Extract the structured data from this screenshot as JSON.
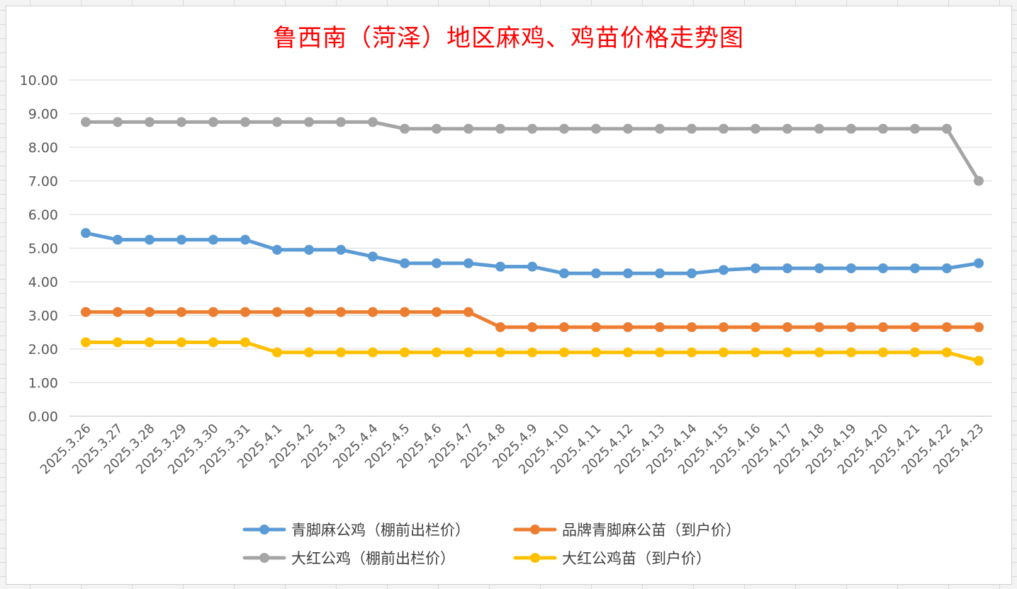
{
  "chart_data": {
    "type": "line",
    "title": "鲁西南（菏泽）地区麻鸡、鸡苗价格走势图",
    "xlabel": "",
    "ylabel": "",
    "ylim": [
      0,
      10
    ],
    "grid": true,
    "legend_position": "bottom",
    "y_ticks": [
      "0.00",
      "1.00",
      "2.00",
      "3.00",
      "4.00",
      "5.00",
      "6.00",
      "7.00",
      "8.00",
      "9.00",
      "10.00"
    ],
    "categories": [
      "2025.3.26",
      "2025.3.27",
      "2025.3.28",
      "2025.3.29",
      "2025.3.30",
      "2025.3.31",
      "2025.4.1",
      "2025.4.2",
      "2025.4.3",
      "2025.4.4",
      "2025.4.5",
      "2025.4.6",
      "2025.4.7",
      "2025.4.8",
      "2025.4.9",
      "2025.4.10",
      "2025.4.11",
      "2025.4.12",
      "2025.4.13",
      "2025.4.14",
      "2025.4.15",
      "2025.4.16",
      "2025.4.17",
      "2025.4.18",
      "2025.4.19",
      "2025.4.20",
      "2025.4.21",
      "2025.4.22",
      "2025.4.23"
    ],
    "series": [
      {
        "name": "青脚麻公鸡（棚前出栏价）",
        "color": "#5b9bd5",
        "values": [
          5.45,
          5.25,
          5.25,
          5.25,
          5.25,
          5.25,
          4.95,
          4.95,
          4.95,
          4.75,
          4.55,
          4.55,
          4.55,
          4.45,
          4.45,
          4.25,
          4.25,
          4.25,
          4.25,
          4.25,
          4.35,
          4.4,
          4.4,
          4.4,
          4.4,
          4.4,
          4.4,
          4.4,
          4.55
        ]
      },
      {
        "name": "品牌青脚麻公苗（到户价）",
        "color": "#ed7d31",
        "values": [
          3.1,
          3.1,
          3.1,
          3.1,
          3.1,
          3.1,
          3.1,
          3.1,
          3.1,
          3.1,
          3.1,
          3.1,
          3.1,
          2.65,
          2.65,
          2.65,
          2.65,
          2.65,
          2.65,
          2.65,
          2.65,
          2.65,
          2.65,
          2.65,
          2.65,
          2.65,
          2.65,
          2.65,
          2.65
        ]
      },
      {
        "name": "大红公鸡（棚前出栏价）",
        "color": "#a5a5a5",
        "values": [
          8.75,
          8.75,
          8.75,
          8.75,
          8.75,
          8.75,
          8.75,
          8.75,
          8.75,
          8.75,
          8.55,
          8.55,
          8.55,
          8.55,
          8.55,
          8.55,
          8.55,
          8.55,
          8.55,
          8.55,
          8.55,
          8.55,
          8.55,
          8.55,
          8.55,
          8.55,
          8.55,
          8.55,
          7.0
        ]
      },
      {
        "name": "大红公鸡苗（到户价）",
        "color": "#ffc000",
        "values": [
          2.2,
          2.2,
          2.2,
          2.2,
          2.2,
          2.2,
          1.9,
          1.9,
          1.9,
          1.9,
          1.9,
          1.9,
          1.9,
          1.9,
          1.9,
          1.9,
          1.9,
          1.9,
          1.9,
          1.9,
          1.9,
          1.9,
          1.9,
          1.9,
          1.9,
          1.9,
          1.9,
          1.9,
          1.65
        ]
      }
    ]
  }
}
